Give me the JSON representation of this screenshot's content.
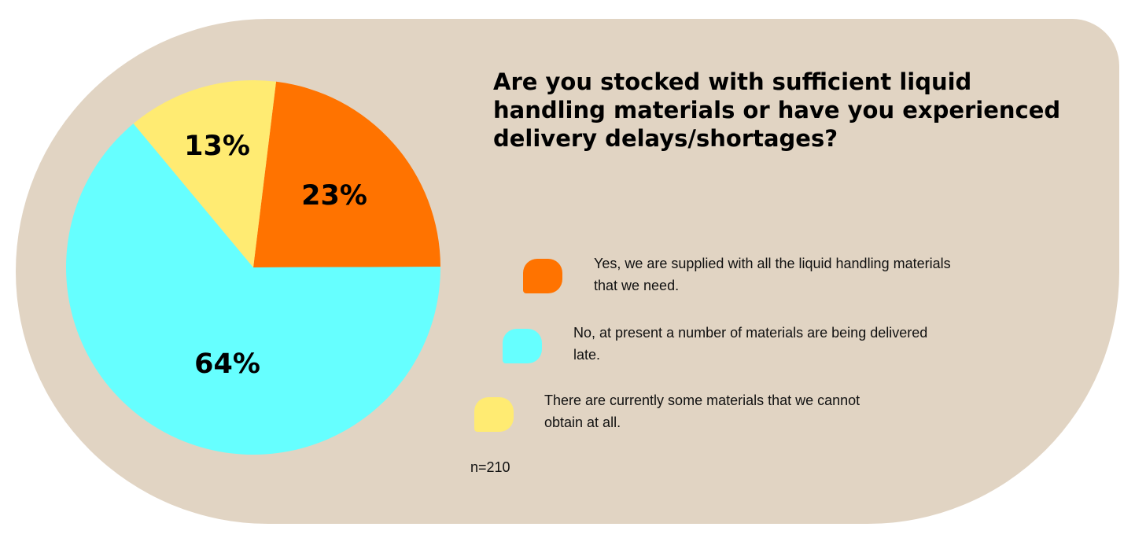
{
  "chart_data": {
    "type": "pie",
    "title": "Are you stocked with sufficient liquid handling materials or have you experienced delivery delays/shortages?",
    "slices": [
      {
        "label": "Yes, we are supplied with all the liquid handling materials that we need.",
        "value": 23,
        "display": "23%",
        "color": "#ff7300"
      },
      {
        "label": "No, at present a number of materials are being delivered late.",
        "value": 64,
        "display": "64%",
        "color": "#66ffff"
      },
      {
        "label": "There are currently some materials that we cannot obtain at all.",
        "value": 13,
        "display": "13%",
        "color": "#ffeb72"
      }
    ],
    "legend_placement": "right",
    "note": "n=210"
  }
}
